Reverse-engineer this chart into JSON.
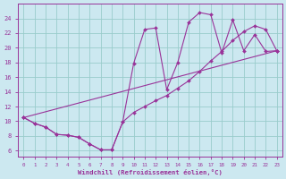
{
  "xlabel": "Windchill (Refroidissement éolien,°C)",
  "bg_color": "#cce8f0",
  "line_color": "#993399",
  "grid_color": "#99cccc",
  "xlim": [
    -0.5,
    23.5
  ],
  "ylim": [
    5.2,
    26.0
  ],
  "xticks": [
    0,
    1,
    2,
    3,
    4,
    5,
    6,
    7,
    8,
    9,
    10,
    11,
    12,
    13,
    14,
    15,
    16,
    17,
    18,
    19,
    20,
    21,
    22,
    23
  ],
  "yticks": [
    6,
    8,
    10,
    12,
    14,
    16,
    18,
    20,
    22,
    24
  ],
  "curve1_x": [
    0,
    1,
    2,
    3,
    4,
    5,
    6,
    7,
    8,
    9,
    10,
    11,
    12,
    13,
    14,
    15,
    16,
    17,
    18,
    19,
    20,
    21,
    22,
    23
  ],
  "curve1_y": [
    10.5,
    9.7,
    9.2,
    8.2,
    8.1,
    7.8,
    6.9,
    6.1,
    6.1,
    9.9,
    17.9,
    22.5,
    22.7,
    14.3,
    18.0,
    23.5,
    24.8,
    24.5,
    19.3,
    23.8,
    19.6,
    21.8,
    19.5,
    19.6
  ],
  "curve2_x": [
    0,
    1,
    2,
    3,
    4,
    5,
    6,
    7,
    8,
    9,
    10,
    11,
    12,
    13,
    14,
    15,
    16,
    17,
    18,
    19,
    20,
    21,
    22,
    23
  ],
  "curve2_y": [
    10.5,
    9.7,
    9.2,
    8.2,
    8.1,
    7.8,
    6.9,
    6.1,
    6.1,
    9.9,
    11.2,
    12.0,
    12.8,
    13.5,
    14.5,
    15.5,
    16.8,
    18.2,
    19.5,
    21.0,
    22.2,
    23.0,
    22.5,
    19.6
  ],
  "curve3_x": [
    0,
    23
  ],
  "curve3_y": [
    10.5,
    19.6
  ]
}
